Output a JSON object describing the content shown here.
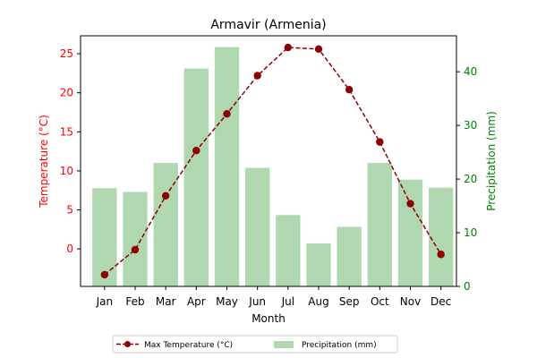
{
  "chart_data": {
    "type": "bar+line",
    "title": "Armavir (Armenia)",
    "xlabel": "Month",
    "ylabel_left": "Temperature (°C)",
    "ylabel_right": "Precipitation (mm)",
    "categories": [
      "Jan",
      "Feb",
      "Mar",
      "Apr",
      "May",
      "Jun",
      "Jul",
      "Aug",
      "Sep",
      "Oct",
      "Nov",
      "Dec"
    ],
    "ylim_left": [
      -4.8,
      27.3
    ],
    "ylim_right": [
      0,
      46.7
    ],
    "yticks_left": [
      0,
      5,
      10,
      15,
      20,
      25
    ],
    "yticks_right": [
      0,
      10,
      20,
      30,
      40
    ],
    "grid": false,
    "legend_position": "bottom-center",
    "series": [
      {
        "name": "Max Temperature (°C)",
        "type": "line",
        "axis": "left",
        "color": "#8b0000",
        "values": [
          -3.3,
          -0.1,
          6.8,
          12.6,
          17.3,
          22.2,
          25.8,
          25.6,
          20.4,
          13.7,
          5.8,
          -0.7
        ]
      },
      {
        "name": "Precipitation (mm)",
        "type": "bar",
        "axis": "right",
        "color": "#b0d8b0",
        "values": [
          18.3,
          17.6,
          23.0,
          40.6,
          44.6,
          22.1,
          13.3,
          8.0,
          11.1,
          23.0,
          19.9,
          18.4
        ]
      }
    ],
    "colors": {
      "left_axis": "#ff0000",
      "right_axis": "#008000"
    }
  }
}
